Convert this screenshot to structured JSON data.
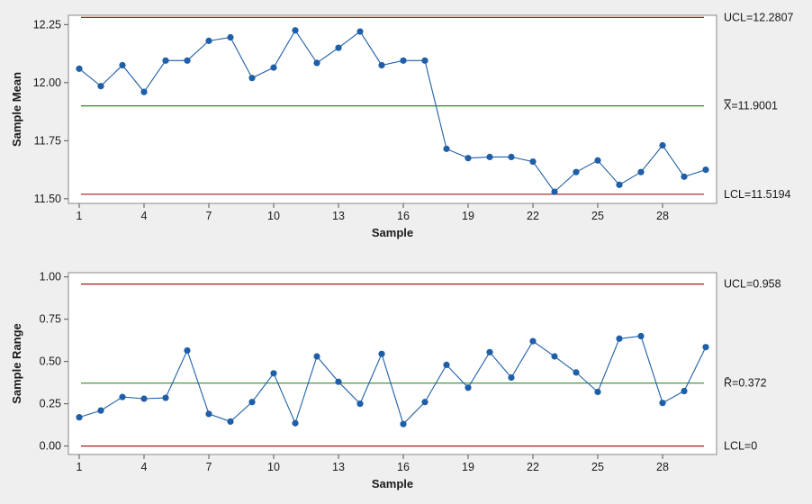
{
  "chart_data": [
    {
      "type": "line",
      "chart": "xbar",
      "xlabel": "Sample",
      "ylabel": "Sample Mean",
      "xlim": [
        0.5,
        30.5
      ],
      "ylim": [
        11.48,
        12.29
      ],
      "xticks": [
        1,
        4,
        7,
        10,
        13,
        16,
        19,
        22,
        25,
        28
      ],
      "yticks": [
        11.5,
        11.75,
        12.0,
        12.25
      ],
      "ytick_labels": [
        "11.50",
        "11.75",
        "12.00",
        "12.25"
      ],
      "x": [
        1,
        2,
        3,
        4,
        5,
        6,
        7,
        8,
        9,
        10,
        11,
        12,
        13,
        14,
        15,
        16,
        17,
        18,
        19,
        20,
        21,
        22,
        23,
        24,
        25,
        26,
        27,
        28,
        29,
        30
      ],
      "series": [
        {
          "values": [
            12.06,
            11.985,
            12.075,
            11.96,
            12.095,
            12.095,
            12.18,
            12.195,
            12.02,
            12.065,
            12.225,
            12.085,
            12.15,
            12.22,
            12.075,
            12.095,
            12.095,
            11.715,
            11.675,
            11.68,
            11.68,
            11.66,
            11.53,
            11.615,
            11.665,
            11.56,
            11.615,
            11.73,
            11.595,
            11.625
          ],
          "color": "#1f5fa8"
        }
      ],
      "limits": [
        {
          "key": "ucl",
          "value": 12.2807,
          "label": "UCL=12.2807",
          "color": "#a01c1c"
        },
        {
          "key": "center",
          "value": 11.9001,
          "label": "X̿=11.9001",
          "color": "#2e8b2e"
        },
        {
          "key": "lcl",
          "value": 11.5194,
          "label": "LCL=11.5194",
          "color": "#a01c1c"
        }
      ],
      "grid": false
    },
    {
      "type": "line",
      "chart": "range",
      "xlabel": "Sample",
      "ylabel": "Sample Range",
      "xlim": [
        0.5,
        30.5
      ],
      "ylim": [
        -0.05,
        1.025
      ],
      "xticks": [
        1,
        4,
        7,
        10,
        13,
        16,
        19,
        22,
        25,
        28
      ],
      "yticks": [
        0.0,
        0.25,
        0.5,
        0.75,
        1.0
      ],
      "ytick_labels": [
        "0.00",
        "0.25",
        "0.50",
        "0.75",
        "1.00"
      ],
      "x": [
        1,
        2,
        3,
        4,
        5,
        6,
        7,
        8,
        9,
        10,
        11,
        12,
        13,
        14,
        15,
        16,
        17,
        18,
        19,
        20,
        21,
        22,
        23,
        24,
        25,
        26,
        27,
        28,
        29,
        30
      ],
      "series": [
        {
          "values": [
            0.17,
            0.21,
            0.29,
            0.28,
            0.285,
            0.565,
            0.19,
            0.145,
            0.26,
            0.43,
            0.135,
            0.53,
            0.38,
            0.25,
            0.545,
            0.13,
            0.26,
            0.48,
            0.345,
            0.555,
            0.405,
            0.62,
            0.53,
            0.435,
            0.32,
            0.635,
            0.65,
            0.255,
            0.325,
            0.585
          ],
          "color": "#1f5fa8"
        }
      ],
      "limits": [
        {
          "key": "ucl",
          "value": 0.958,
          "label": "UCL=0.958",
          "color": "#a01c1c"
        },
        {
          "key": "center",
          "value": 0.372,
          "label": "R̄=0.372",
          "color": "#2e8b2e"
        },
        {
          "key": "lcl",
          "value": 0.0,
          "label": "LCL=0",
          "color": "#a01c1c"
        }
      ],
      "grid": false
    }
  ]
}
